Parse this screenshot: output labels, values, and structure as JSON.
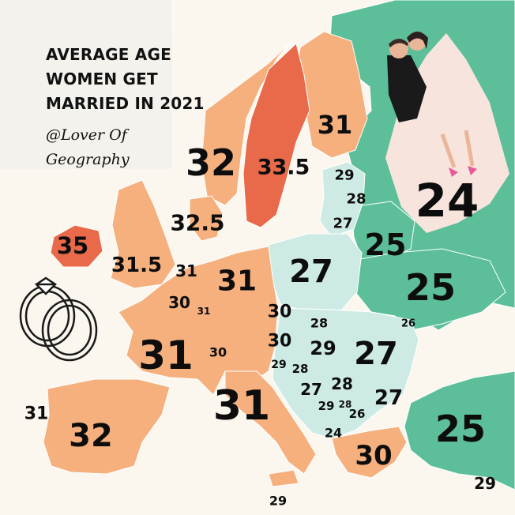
{
  "title": [
    "AVERAGE AGE",
    "WOMEN GET",
    "MARRIED IN 2021"
  ],
  "credit": [
    "@Lover Of",
    "Geography"
  ],
  "colors": {
    "background": "#fbf7ef",
    "sea": "#fbf7ef",
    "age_24_26": "#5cbf9a",
    "age_27_29": "#cdebe4",
    "age_30_32": "#f5b07e",
    "age_33_35": "#e96a4a",
    "border": "#ffffff"
  },
  "icons": [
    "wedding-rings-icon",
    "bride-groom-illustration"
  ],
  "countries": [
    {
      "name": "Iceland",
      "age": "32"
    },
    {
      "name": "Norway",
      "age": "32"
    },
    {
      "name": "Sweden",
      "age": "33.5"
    },
    {
      "name": "Finland",
      "age": "31"
    },
    {
      "name": "Denmark",
      "age": "32.5"
    },
    {
      "name": "Ireland",
      "age": "35"
    },
    {
      "name": "United Kingdom",
      "age": "31.5"
    },
    {
      "name": "Netherlands",
      "age": "31"
    },
    {
      "name": "Germany",
      "age": "31"
    },
    {
      "name": "Belgium",
      "age": "30"
    },
    {
      "name": "Luxembourg",
      "age": "31"
    },
    {
      "name": "France",
      "age": "31"
    },
    {
      "name": "Switzerland",
      "age": "30"
    },
    {
      "name": "Czechia",
      "age": "30"
    },
    {
      "name": "Austria",
      "age": "30"
    },
    {
      "name": "Italy",
      "age": "31"
    },
    {
      "name": "Spain",
      "age": "32"
    },
    {
      "name": "Portugal",
      "age": "31"
    },
    {
      "name": "Estonia",
      "age": "29"
    },
    {
      "name": "Latvia",
      "age": "28"
    },
    {
      "name": "Lithuania",
      "age": "27"
    },
    {
      "name": "Poland",
      "age": "27"
    },
    {
      "name": "Belarus",
      "age": "25"
    },
    {
      "name": "Ukraine",
      "age": "25"
    },
    {
      "name": "Russia",
      "age": "24"
    },
    {
      "name": "Slovakia",
      "age": "28"
    },
    {
      "name": "Hungary",
      "age": "29"
    },
    {
      "name": "Moldova",
      "age": "26"
    },
    {
      "name": "Romania",
      "age": "27"
    },
    {
      "name": "Slovenia",
      "age": "29"
    },
    {
      "name": "Croatia",
      "age": "28"
    },
    {
      "name": "Bosnia",
      "age": "27"
    },
    {
      "name": "Serbia",
      "age": "28"
    },
    {
      "name": "Montenegro",
      "age": "29"
    },
    {
      "name": "Kosovo",
      "age": "28"
    },
    {
      "name": "Bulgaria",
      "age": "27"
    },
    {
      "name": "North Macedonia",
      "age": "26"
    },
    {
      "name": "Albania",
      "age": "24"
    },
    {
      "name": "Greece",
      "age": "30"
    },
    {
      "name": "Turkey",
      "age": "25"
    },
    {
      "name": "Malta",
      "age": "29"
    },
    {
      "name": "Cyprus",
      "age": "29"
    }
  ]
}
